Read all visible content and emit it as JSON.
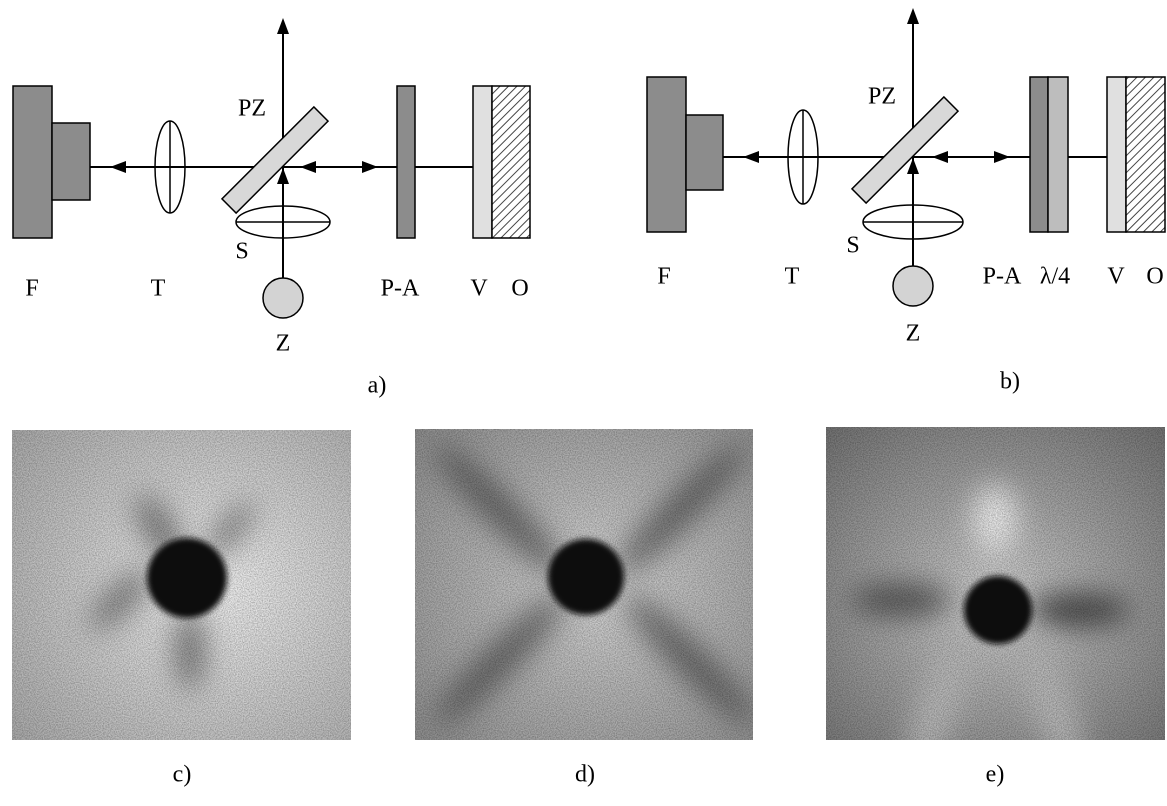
{
  "diagram_a": {
    "caption": "a)",
    "labels": [
      "F",
      "T",
      "PZ",
      "S",
      "Z",
      "P-A",
      "V",
      "O"
    ]
  },
  "diagram_b": {
    "caption": "b)",
    "labels": [
      "F",
      "T",
      "PZ",
      "S",
      "Z",
      "P-A",
      "λ/4",
      "V",
      "O"
    ]
  },
  "photos": [
    {
      "caption": "c)"
    },
    {
      "caption": "d)"
    },
    {
      "caption": "e)"
    }
  ]
}
